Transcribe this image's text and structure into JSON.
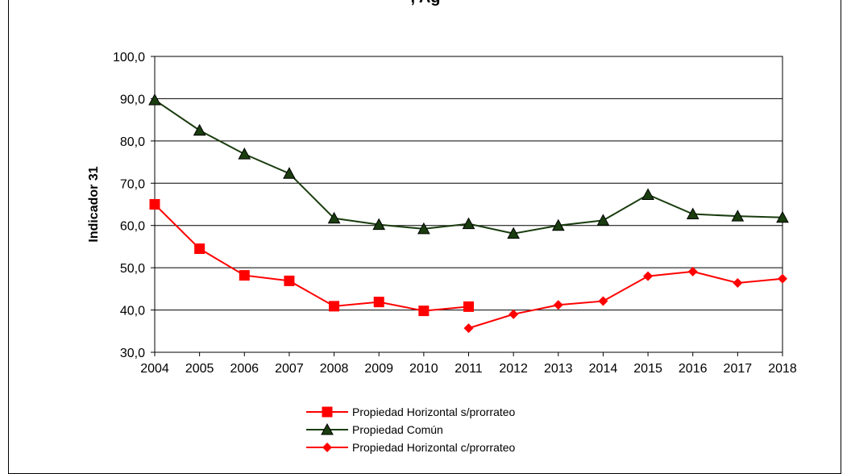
{
  "chart_data": {
    "type": "line",
    "title": ", Ag",
    "ylabel": "Indicador 31",
    "xlabel": "",
    "ylim": [
      30,
      100
    ],
    "yticks": [
      "30,0",
      "40,0",
      "50,0",
      "60,0",
      "70,0",
      "80,0",
      "90,0",
      "100,0"
    ],
    "categories": [
      "2004",
      "2005",
      "2006",
      "2007",
      "2008",
      "2009",
      "2010",
      "2011",
      "2012",
      "2013",
      "2014",
      "2015",
      "2016",
      "2017",
      "2018"
    ],
    "grid": true,
    "legend_position": "bottom",
    "series": [
      {
        "name": "Propiedad Horizontal s/prorrateo",
        "color": "#ff0000",
        "marker": "square",
        "values": [
          65.0,
          54.5,
          48.2,
          46.9,
          40.9,
          41.9,
          39.8,
          40.8,
          null,
          null,
          null,
          null,
          null,
          null,
          null
        ]
      },
      {
        "name": "Propiedad Común",
        "color": "#1a3d0f",
        "marker": "triangle",
        "values": [
          89.7,
          82.5,
          76.9,
          72.3,
          61.7,
          60.2,
          59.2,
          60.4,
          58.1,
          60.0,
          61.2,
          67.3,
          62.7,
          62.2,
          61.9
        ]
      },
      {
        "name": "Propiedad Horizontal c/prorrateo",
        "color": "#ff0000",
        "marker": "diamond",
        "values": [
          null,
          null,
          null,
          null,
          null,
          null,
          null,
          35.7,
          39.0,
          41.2,
          42.1,
          48.0,
          49.1,
          46.4,
          47.4
        ]
      }
    ]
  }
}
